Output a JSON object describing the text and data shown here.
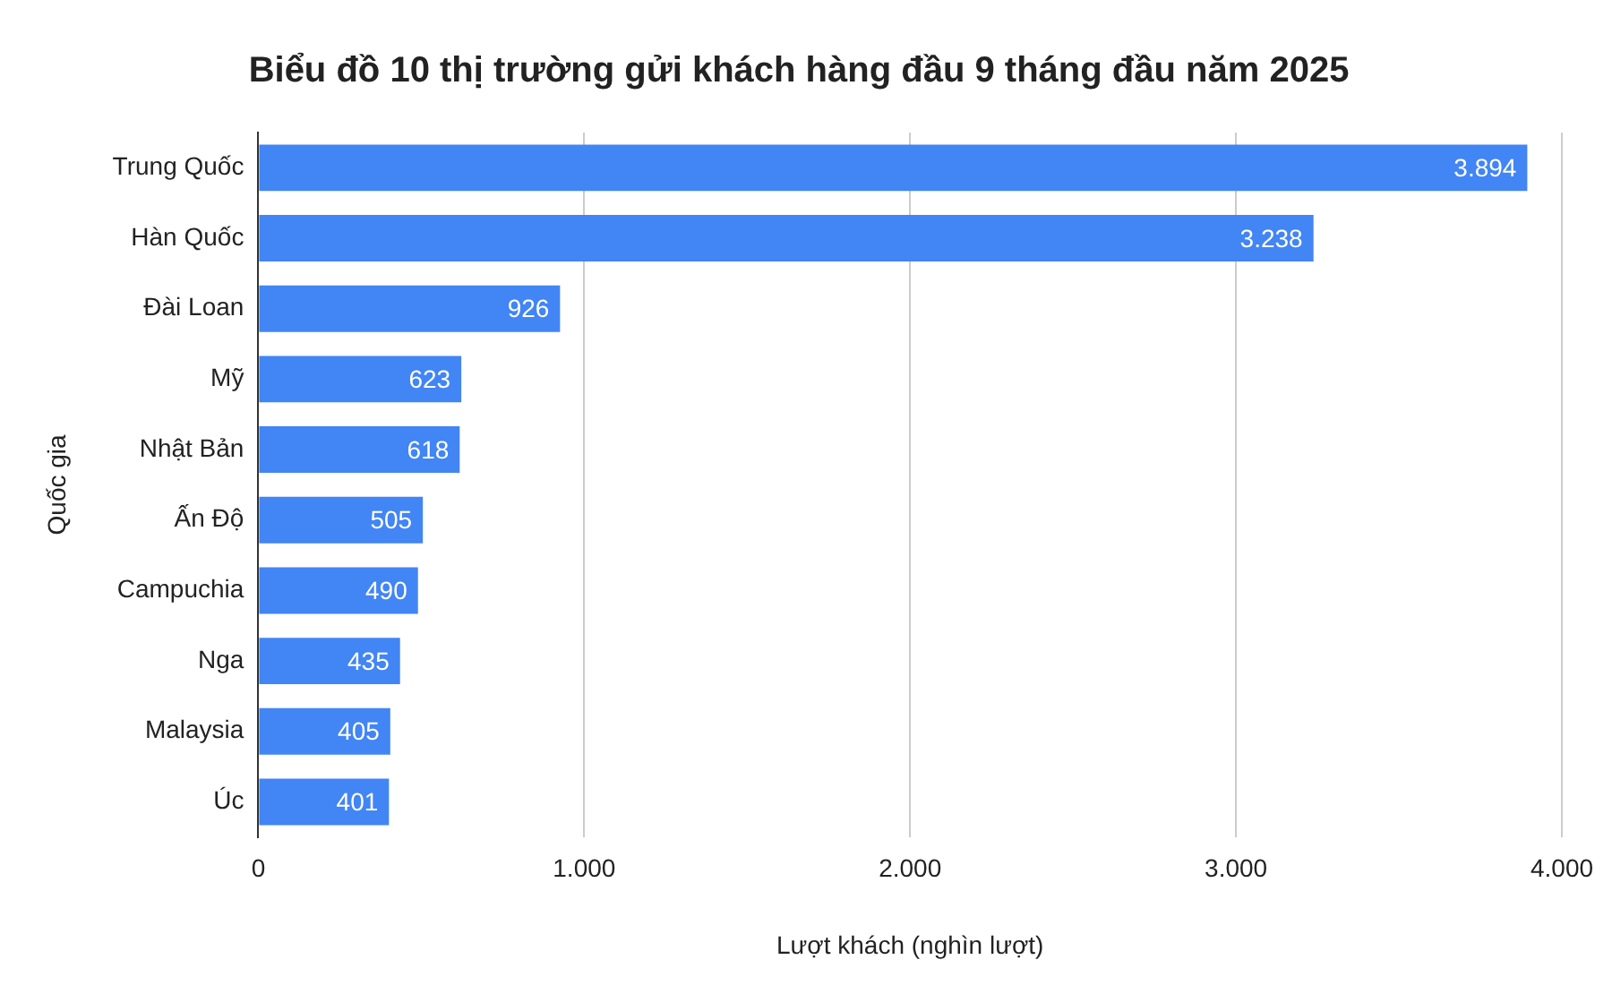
{
  "chart_data": {
    "type": "bar",
    "orientation": "horizontal",
    "title": "Biểu đồ 10 thị trường gửi khách hàng đầu 9 tháng đầu năm 2025",
    "xlabel": "Lượt khách (nghìn lượt)",
    "ylabel": "Quốc gia",
    "categories": [
      "Trung Quốc",
      "Hàn Quốc",
      "Đài Loan",
      "Mỹ",
      "Nhật Bản",
      "Ấn Độ",
      "Campuchia",
      "Nga",
      "Malaysia",
      "Úc"
    ],
    "values": [
      3894,
      3238,
      926,
      623,
      618,
      505,
      490,
      435,
      405,
      401
    ],
    "value_labels": [
      "3.894",
      "3.238",
      "926",
      "623",
      "618",
      "505",
      "490",
      "435",
      "405",
      "401"
    ],
    "color": "#4285f4",
    "xlim": [
      0,
      4000
    ],
    "xticks": [
      0,
      {
        "value": 1000,
        "label": "1.000"
      },
      {
        "value": 2000,
        "label": "2.000"
      },
      {
        "value": 3000,
        "label": "3.000"
      },
      {
        "value": 4000,
        "label": "4.000"
      }
    ],
    "grid": "x",
    "legend": false
  }
}
